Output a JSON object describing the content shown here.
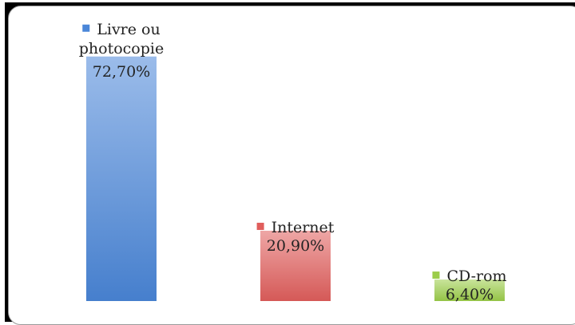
{
  "chart_data": {
    "type": "bar",
    "categories": [
      "Livre ou photocopie",
      "Internet",
      "CD-rom"
    ],
    "category_lines": [
      [
        "Livre ou",
        "photocopie"
      ],
      [
        "Internet"
      ],
      [
        "CD-rom"
      ]
    ],
    "values": [
      72.7,
      20.9,
      6.4
    ],
    "value_labels": [
      "72,70%",
      "20,90%",
      "6,40%"
    ],
    "colors": [
      "#4a86d8",
      "#e05e5c",
      "#9ccd4a"
    ],
    "ylim": [
      0,
      80
    ],
    "grid": false,
    "legend": "per-bar markers beside category labels",
    "title": "",
    "xlabel": "",
    "ylabel": ""
  }
}
